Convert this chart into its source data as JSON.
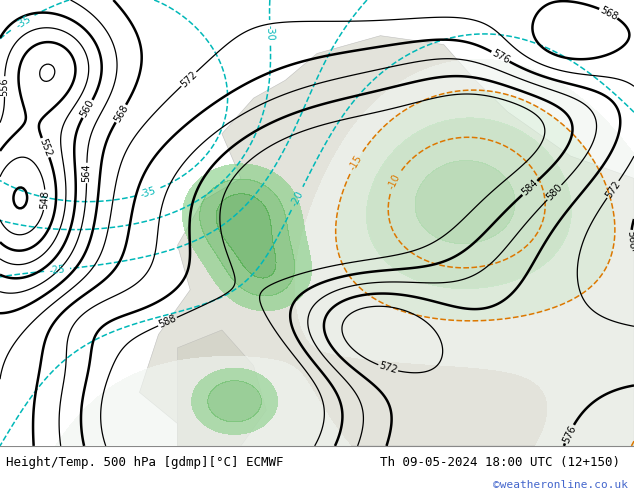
{
  "title_left": "Height/Temp. 500 hPa [gdmp][°C] ECMWF",
  "title_right": "Th 09-05-2024 18:00 UTC (12+150)",
  "credit": "©weatheronline.co.uk",
  "title_color": "#000000",
  "credit_color": "#4466cc",
  "title_fontsize": 9,
  "credit_fontsize": 8,
  "map_facecolor": "#f5f5f0"
}
